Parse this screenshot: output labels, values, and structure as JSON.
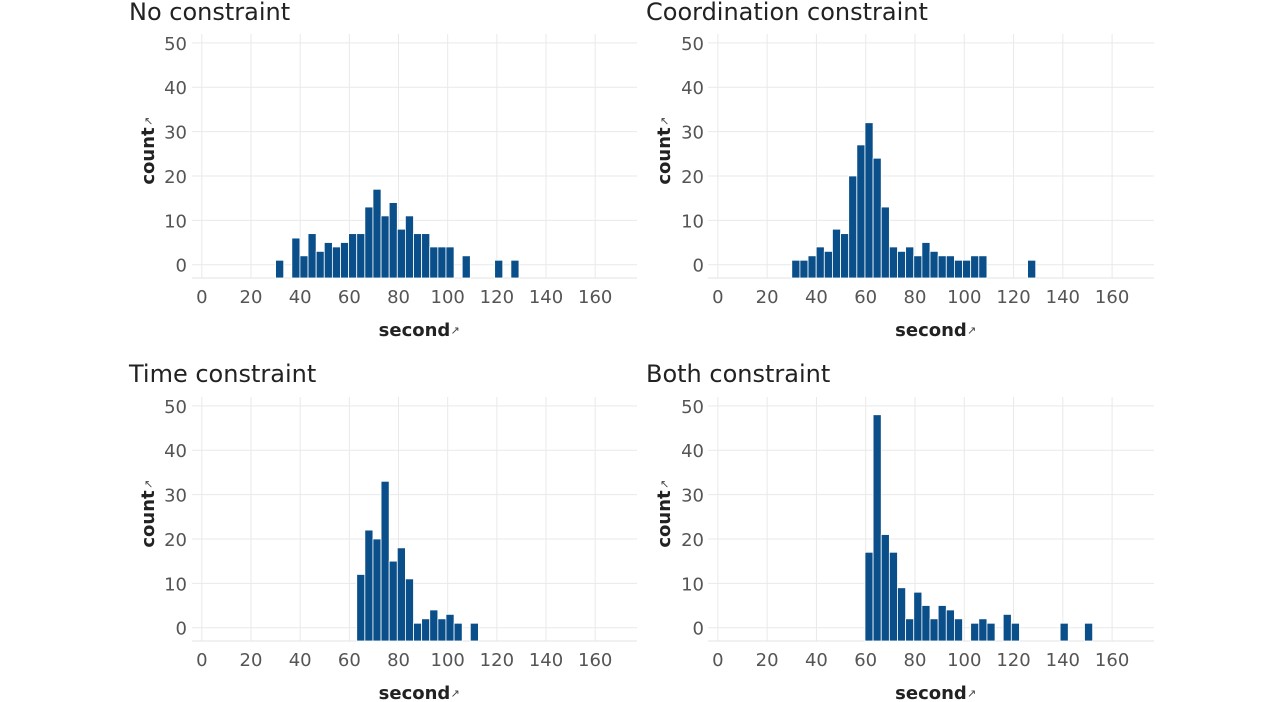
{
  "chart_data": [
    {
      "type": "bar",
      "title": "No constraint",
      "xlabel": "second",
      "ylabel": "count",
      "sort_icon": "sort-icon",
      "xlim": [
        -4,
        177
      ],
      "ylim": [
        -3,
        52
      ],
      "xticks": [
        0,
        20,
        40,
        60,
        80,
        100,
        120,
        140,
        160
      ],
      "yticks": [
        0,
        10,
        20,
        30,
        40,
        50
      ],
      "bin_width": 3.3,
      "bin_starts": [
        30,
        36.6,
        39.9,
        43.2,
        46.5,
        49.8,
        53.1,
        56.4,
        59.7,
        63,
        66.3,
        69.6,
        72.9,
        76.2,
        79.5,
        82.8,
        86.1,
        89.4,
        92.7,
        96,
        99.3,
        105.9,
        119.1,
        125.7
      ],
      "values": [
        1,
        6,
        2,
        7,
        3,
        5,
        4,
        5,
        7,
        7,
        13,
        17,
        11,
        14,
        8,
        11,
        7,
        7,
        4,
        4,
        4,
        2,
        1,
        1
      ]
    },
    {
      "type": "bar",
      "title": "Coordination constraint",
      "xlabel": "second",
      "ylabel": "count",
      "sort_icon": "sort-icon",
      "xlim": [
        -4,
        177
      ],
      "ylim": [
        -3,
        52
      ],
      "xticks": [
        0,
        20,
        40,
        60,
        80,
        100,
        120,
        140,
        160
      ],
      "yticks": [
        0,
        10,
        20,
        30,
        40,
        50
      ],
      "bin_width": 3.3,
      "bin_starts": [
        30,
        33.3,
        36.6,
        39.9,
        43.2,
        46.5,
        49.8,
        53.1,
        56.4,
        59.7,
        63,
        66.3,
        69.6,
        72.9,
        76.2,
        79.5,
        82.8,
        86.1,
        89.4,
        92.7,
        96,
        99.3,
        102.6,
        105.9,
        125.7
      ],
      "values": [
        1,
        1,
        2,
        4,
        3,
        8,
        7,
        20,
        27,
        32,
        24,
        13,
        4,
        3,
        4,
        2,
        5,
        3,
        2,
        2,
        1,
        1,
        2,
        2,
        1
      ]
    },
    {
      "type": "bar",
      "title": "Time constraint",
      "xlabel": "second",
      "ylabel": "count",
      "sort_icon": "sort-icon",
      "xlim": [
        -4,
        177
      ],
      "ylim": [
        -3,
        52
      ],
      "xticks": [
        0,
        20,
        40,
        60,
        80,
        100,
        120,
        140,
        160
      ],
      "yticks": [
        0,
        10,
        20,
        30,
        40,
        50
      ],
      "bin_width": 3.3,
      "bin_starts": [
        63,
        66.3,
        69.6,
        72.9,
        76.2,
        79.5,
        82.8,
        86.1,
        89.4,
        92.7,
        96,
        99.3,
        102.6,
        109.2
      ],
      "values": [
        12,
        22,
        20,
        33,
        15,
        18,
        11,
        1,
        2,
        4,
        2,
        3,
        1,
        1
      ]
    },
    {
      "type": "bar",
      "title": "Both constraint",
      "xlabel": "second",
      "ylabel": "count",
      "sort_icon": "sort-icon",
      "xlim": [
        -4,
        177
      ],
      "ylim": [
        -3,
        52
      ],
      "xticks": [
        0,
        20,
        40,
        60,
        80,
        100,
        120,
        140,
        160
      ],
      "yticks": [
        0,
        10,
        20,
        30,
        40,
        50
      ],
      "bin_width": 3.3,
      "bin_starts": [
        59.7,
        63,
        66.3,
        69.6,
        72.9,
        76.2,
        79.5,
        82.8,
        86.1,
        89.4,
        92.7,
        96,
        102.6,
        105.9,
        109.2,
        115.8,
        119.1,
        138.9,
        148.8
      ],
      "values": [
        17,
        48,
        21,
        17,
        9,
        2,
        8,
        5,
        2,
        5,
        4,
        2,
        1,
        2,
        1,
        3,
        1,
        1,
        1
      ]
    }
  ],
  "colors": {
    "bar": "#0b4f8a",
    "bar_outline": "#ffffff",
    "grid": "#e9e9e9",
    "title_text": "#222222",
    "tick_text": "#555555"
  }
}
